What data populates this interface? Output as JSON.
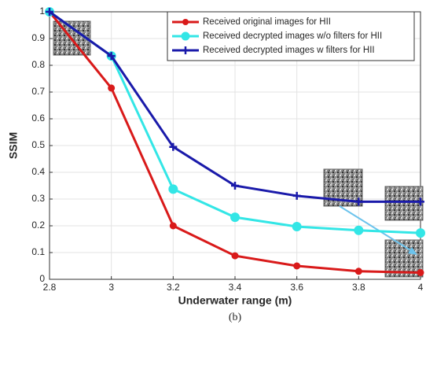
{
  "chart_data": {
    "type": "line",
    "caption": "(b)",
    "xlabel": "Underwater range (m)",
    "ylabel": "SSIM",
    "x": [
      2.8,
      3,
      3.2,
      3.4,
      3.6,
      3.8,
      4
    ],
    "xlim": [
      2.8,
      4
    ],
    "xticks": [
      2.8,
      3,
      3.2,
      3.4,
      3.6,
      3.8,
      4
    ],
    "ylim": [
      0,
      1
    ],
    "yticks": [
      0,
      0.1,
      0.2,
      0.3,
      0.4,
      0.5,
      0.6,
      0.7,
      0.8,
      0.9,
      1
    ],
    "grid": true,
    "legend": "top-right",
    "series": [
      {
        "name": "Received original images for HII",
        "color": "#d91a1a",
        "marker": "circle",
        "values": [
          1,
          0.715,
          0.2,
          0.088,
          0.05,
          0.03,
          0.025
        ]
      },
      {
        "name": "Received decrypted images w/o filters for HII",
        "color": "#33e6e6",
        "marker": "circle-large",
        "values": [
          1,
          0.835,
          0.337,
          0.232,
          0.197,
          0.183,
          0.173
        ]
      },
      {
        "name": "Received decrypted images w filters for HII",
        "color": "#1a1aaa",
        "marker": "plus",
        "values": [
          1,
          0.835,
          0.495,
          0.35,
          0.312,
          0.29,
          0.29
        ]
      }
    ]
  }
}
